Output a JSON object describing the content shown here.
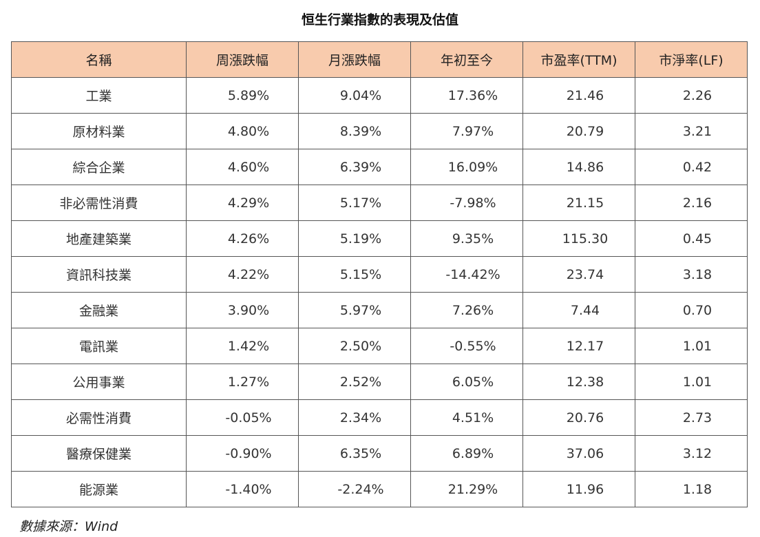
{
  "title": "恒生行業指數的表現及估值",
  "table": {
    "headers": [
      "名稱",
      "周漲跌幅",
      "月漲跌幅",
      "年初至今",
      "市盈率(TTM)",
      "市淨率(LF)"
    ],
    "rows": [
      [
        "工業",
        "5.89%",
        "9.04%",
        "17.36%",
        "21.46",
        "2.26"
      ],
      [
        "原材料業",
        "4.80%",
        "8.39%",
        "7.97%",
        "20.79",
        "3.21"
      ],
      [
        "綜合企業",
        "4.60%",
        "6.39%",
        "16.09%",
        "14.86",
        "0.42"
      ],
      [
        "非必需性消費",
        "4.29%",
        "5.17%",
        "-7.98%",
        "21.15",
        "2.16"
      ],
      [
        "地產建築業",
        "4.26%",
        "5.19%",
        "9.35%",
        "115.30",
        "0.45"
      ],
      [
        "資訊科技業",
        "4.22%",
        "5.15%",
        "-14.42%",
        "23.74",
        "3.18"
      ],
      [
        "金融業",
        "3.90%",
        "5.97%",
        "7.26%",
        "7.44",
        "0.70"
      ],
      [
        "電訊業",
        "1.42%",
        "2.50%",
        "-0.55%",
        "12.17",
        "1.01"
      ],
      [
        "公用事業",
        "1.27%",
        "2.52%",
        "6.05%",
        "12.38",
        "1.01"
      ],
      [
        "必需性消費",
        "-0.05%",
        "2.34%",
        "4.51%",
        "20.76",
        "2.73"
      ],
      [
        "醫療保健業",
        "-0.90%",
        "6.35%",
        "6.89%",
        "37.06",
        "3.12"
      ],
      [
        "能源業",
        "-1.40%",
        "-2.24%",
        "21.29%",
        "11.96",
        "1.18"
      ]
    ]
  },
  "source": "數據來源：Wind",
  "colors": {
    "header_bg": "#f8cbad",
    "border": "#555555"
  }
}
